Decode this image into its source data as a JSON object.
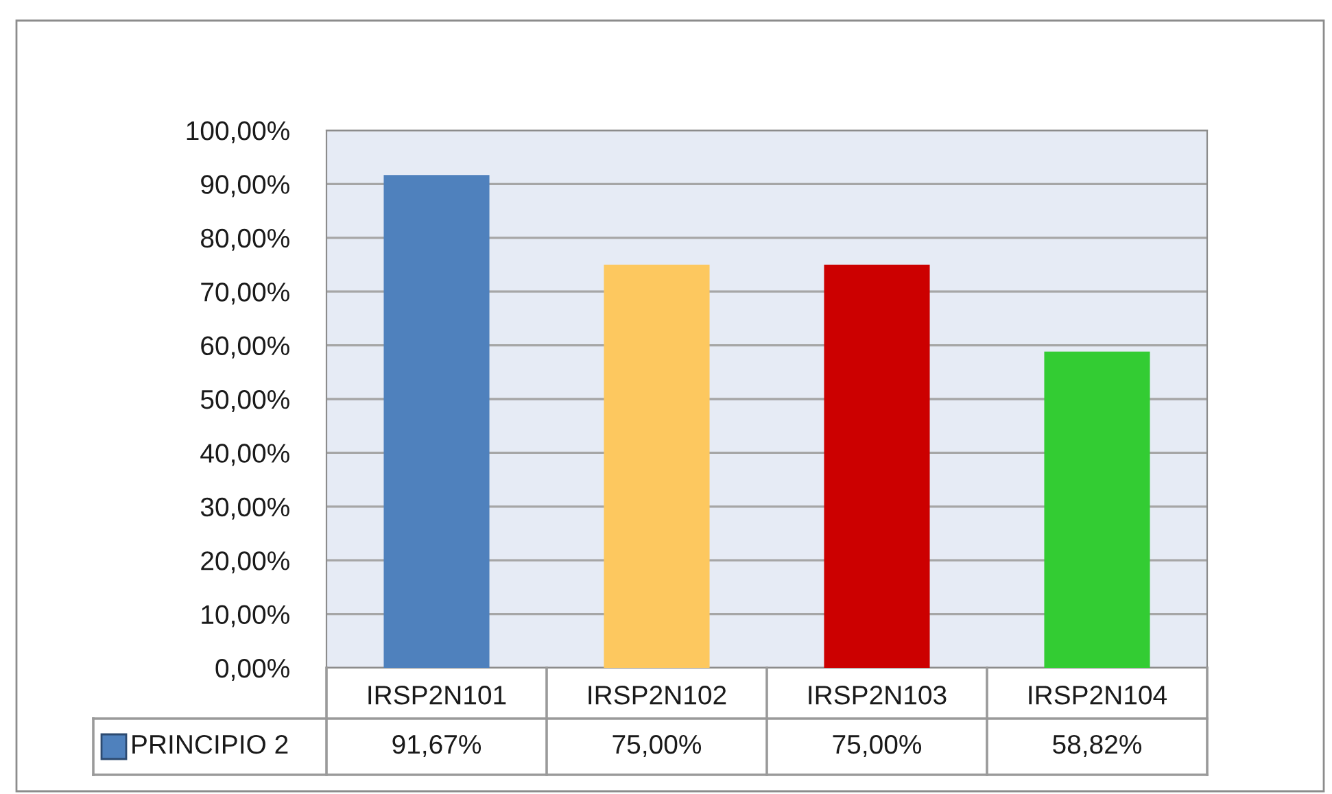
{
  "chart_data": {
    "type": "bar",
    "categories": [
      "IRSP2N101",
      "IRSP2N102",
      "IRSP2N103",
      "IRSP2N104"
    ],
    "series": [
      {
        "name": "PRINCIPIO 2",
        "color": "#4f81bd",
        "colors": [
          "#4f81bd",
          "#fdc85f",
          "#cc0000",
          "#33cc33"
        ],
        "values": [
          91.67,
          75.0,
          75.0,
          58.82
        ],
        "value_labels": [
          "91,67%",
          "75,00%",
          "75,00%",
          "58,82%"
        ]
      }
    ],
    "ylim": [
      0,
      100
    ],
    "yticks": [
      {
        "value": 0,
        "label": "0,00%"
      },
      {
        "value": 10,
        "label": "10,00%"
      },
      {
        "value": 20,
        "label": "20,00%"
      },
      {
        "value": 30,
        "label": "30,00%"
      },
      {
        "value": 40,
        "label": "40,00%"
      },
      {
        "value": 50,
        "label": "50,00%"
      },
      {
        "value": 60,
        "label": "60,00%"
      },
      {
        "value": 70,
        "label": "70,00%"
      },
      {
        "value": 80,
        "label": "80,00%"
      },
      {
        "value": 90,
        "label": "90,00%"
      },
      {
        "value": 100,
        "label": "100,00%"
      }
    ],
    "grid": "y",
    "legend": "bottom left"
  }
}
